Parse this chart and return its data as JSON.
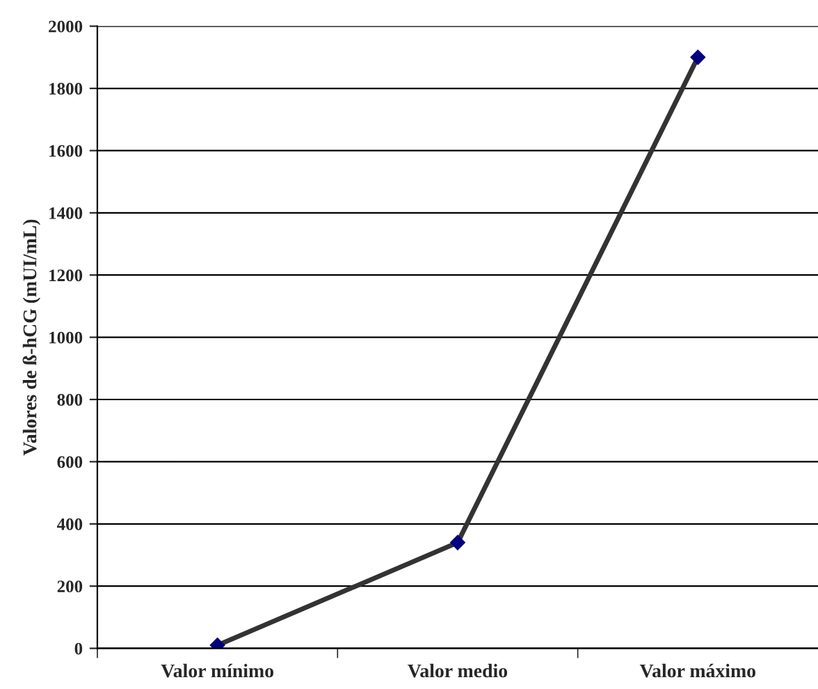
{
  "chart_data": {
    "type": "line",
    "ylabel": "Valores de ß-hCG (mUI/mL)",
    "categories": [
      "Valor mínimo",
      "Valor medio",
      "Valor máximo"
    ],
    "series": [
      {
        "color": "#333333",
        "values": [
          10,
          340,
          1900
        ]
      }
    ],
    "ylim": [
      0,
      2000
    ],
    "yticks": [
      0,
      200,
      400,
      600,
      800,
      1000,
      1200,
      1400,
      1600,
      1800,
      2000
    ],
    "grid": "y",
    "marker": "diamond",
    "line_style": "solid"
  }
}
